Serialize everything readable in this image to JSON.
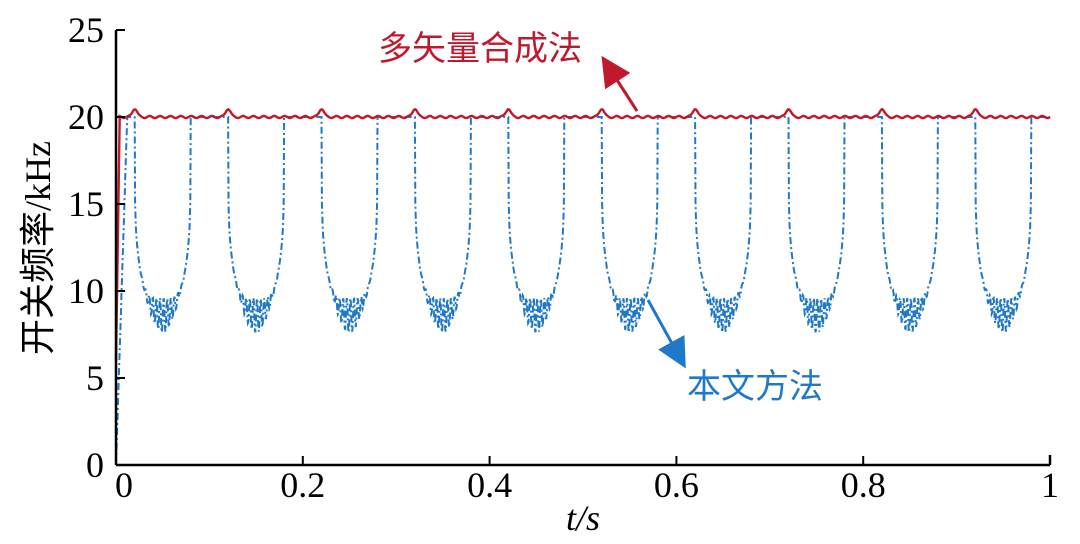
{
  "chart_data": {
    "type": "line",
    "xlabel": "t/s",
    "ylabel": "开关频率/kHz",
    "xlim": [
      0,
      1
    ],
    "ylim": [
      0,
      25
    ],
    "x_ticks": [
      "0",
      "0.2",
      "0.4",
      "0.6",
      "0.8",
      "1"
    ],
    "x_tick_values": [
      0,
      0.2,
      0.4,
      0.6,
      0.8,
      1
    ],
    "y_ticks": [
      "0",
      "5",
      "10",
      "15",
      "20",
      "25"
    ],
    "y_tick_values": [
      0,
      5,
      10,
      15,
      20,
      25
    ],
    "grid": false,
    "series": [
      {
        "name": "多矢量合成法",
        "color": "#c0182c",
        "style": "solid",
        "baseline_khz": 20,
        "spike_times_s": [
          0.02,
          0.12,
          0.22,
          0.32,
          0.42,
          0.52,
          0.62,
          0.72,
          0.82,
          0.92
        ],
        "spike_peak_khz": 20.5
      },
      {
        "name": "本文方法",
        "color": "#1f78c8",
        "style": "dash-dot",
        "period_s": 0.1,
        "max_khz": 20,
        "min_khz": 6.8,
        "trough_centers_s": [
          0.05,
          0.15,
          0.25,
          0.35,
          0.45,
          0.55,
          0.65,
          0.75,
          0.85,
          0.95
        ]
      }
    ],
    "annotations": [
      {
        "text": "多矢量合成法",
        "color": "#c0182c",
        "points_to": "多矢量合成法"
      },
      {
        "text": "本文方法",
        "color": "#1f78c8",
        "points_to": "本文方法"
      }
    ]
  }
}
